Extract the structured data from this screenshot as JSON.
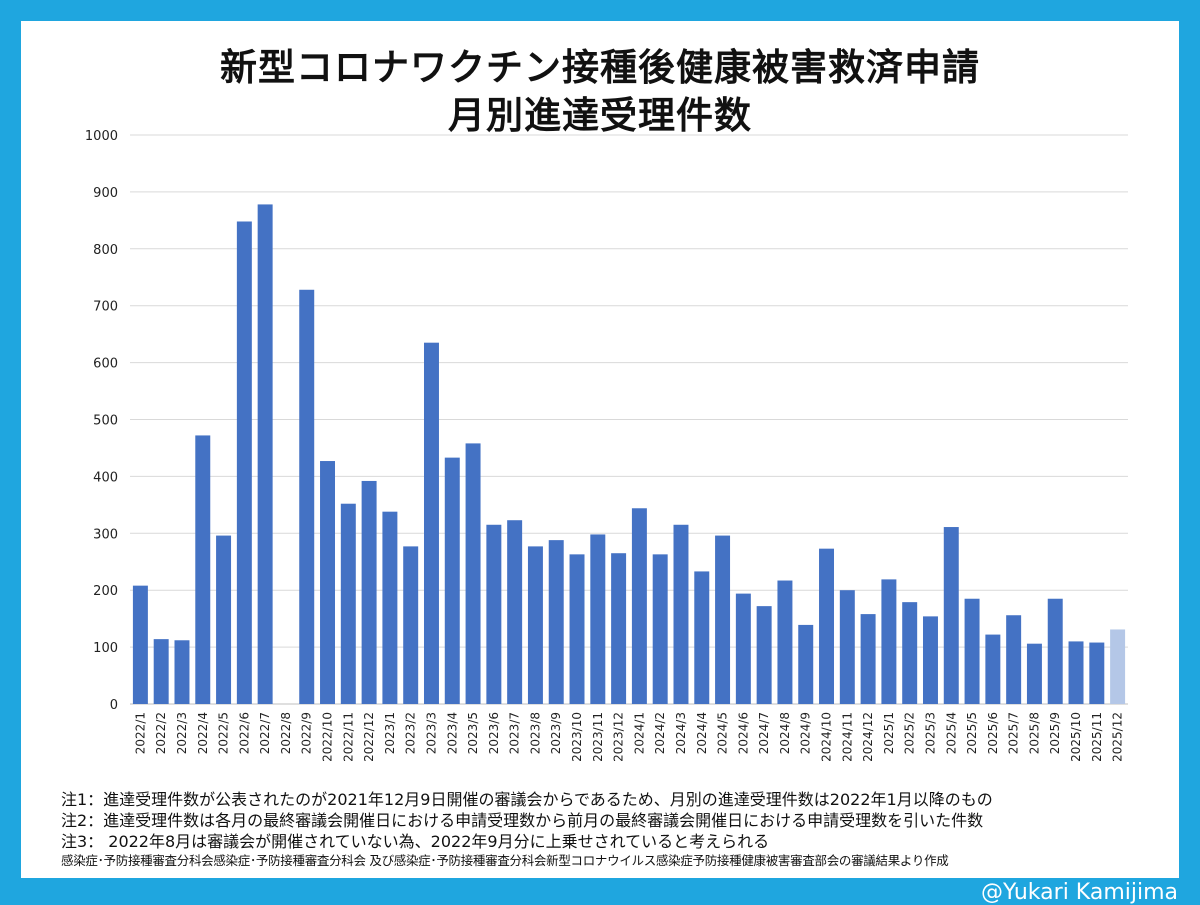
{
  "title_line1": "新型コロナワクチン接種後健康被害救済申請",
  "title_line2": "月別進達受理件数",
  "notes": [
    "注1：進達受理件数が公表されたのが2021年12月9日開催の審議会からであるため、月別の進達受理件数は2022年1月以降のもの",
    "注2：進達受理件数は各月の最終審議会開催日における申請受理数から前月の最終審議会開催日における申請受理数を引いた件数",
    "注3： 2022年8月は審議会が開催されていない為、2022年9月分に上乗せされていると考えられる"
  ],
  "source": "感染症･予防接種審査分科会感染症･予防接種審査分科会 及び感染症･予防接種審査分科会新型コロナウイルス感染症予防接種健康被害審査部会の審議結果より作成",
  "credit": "@Yukari Kamijima",
  "colors": {
    "bar": "#4472c4",
    "bar_highlight": "#b4c7e7",
    "frame": "#1fa6df",
    "grid": "#d9d9d9"
  },
  "chart_data": {
    "type": "bar",
    "categories": [
      "2022/1",
      "2022/2",
      "2022/3",
      "2022/4",
      "2022/5",
      "2022/6",
      "2022/7",
      "2022/8",
      "2022/9",
      "2022/10",
      "2022/11",
      "2022/12",
      "2023/1",
      "2023/2",
      "2023/3",
      "2023/4",
      "2023/5",
      "2023/6",
      "2023/7",
      "2023/8",
      "2023/9",
      "2023/10",
      "2023/11",
      "2023/12",
      "2024/1",
      "2024/2",
      "2024/3",
      "2024/4",
      "2024/5",
      "2024/6",
      "2024/7",
      "2024/8",
      "2024/9",
      "2024/10",
      "2024/11",
      "2024/12",
      "2025/1",
      "2025/2",
      "2025/3",
      "2025/4",
      "2025/5",
      "2025/6",
      "2025/7",
      "2025/8",
      "2025/9",
      "2025/10",
      "2025/11",
      "2025/12"
    ],
    "values": [
      208,
      114,
      112,
      472,
      296,
      848,
      878,
      0,
      728,
      427,
      352,
      392,
      338,
      277,
      635,
      433,
      458,
      315,
      323,
      277,
      288,
      263,
      298,
      265,
      344,
      263,
      315,
      233,
      296,
      194,
      172,
      217,
      139,
      273,
      200,
      158,
      219,
      179,
      154,
      311,
      185,
      122,
      156,
      106,
      185,
      110,
      108,
      131
    ],
    "highlight_last": true,
    "ylim": [
      0,
      1000
    ],
    "yticks": [
      0,
      100,
      200,
      300,
      400,
      500,
      600,
      700,
      800,
      900,
      1000
    ],
    "grid": true,
    "legend": "none"
  }
}
